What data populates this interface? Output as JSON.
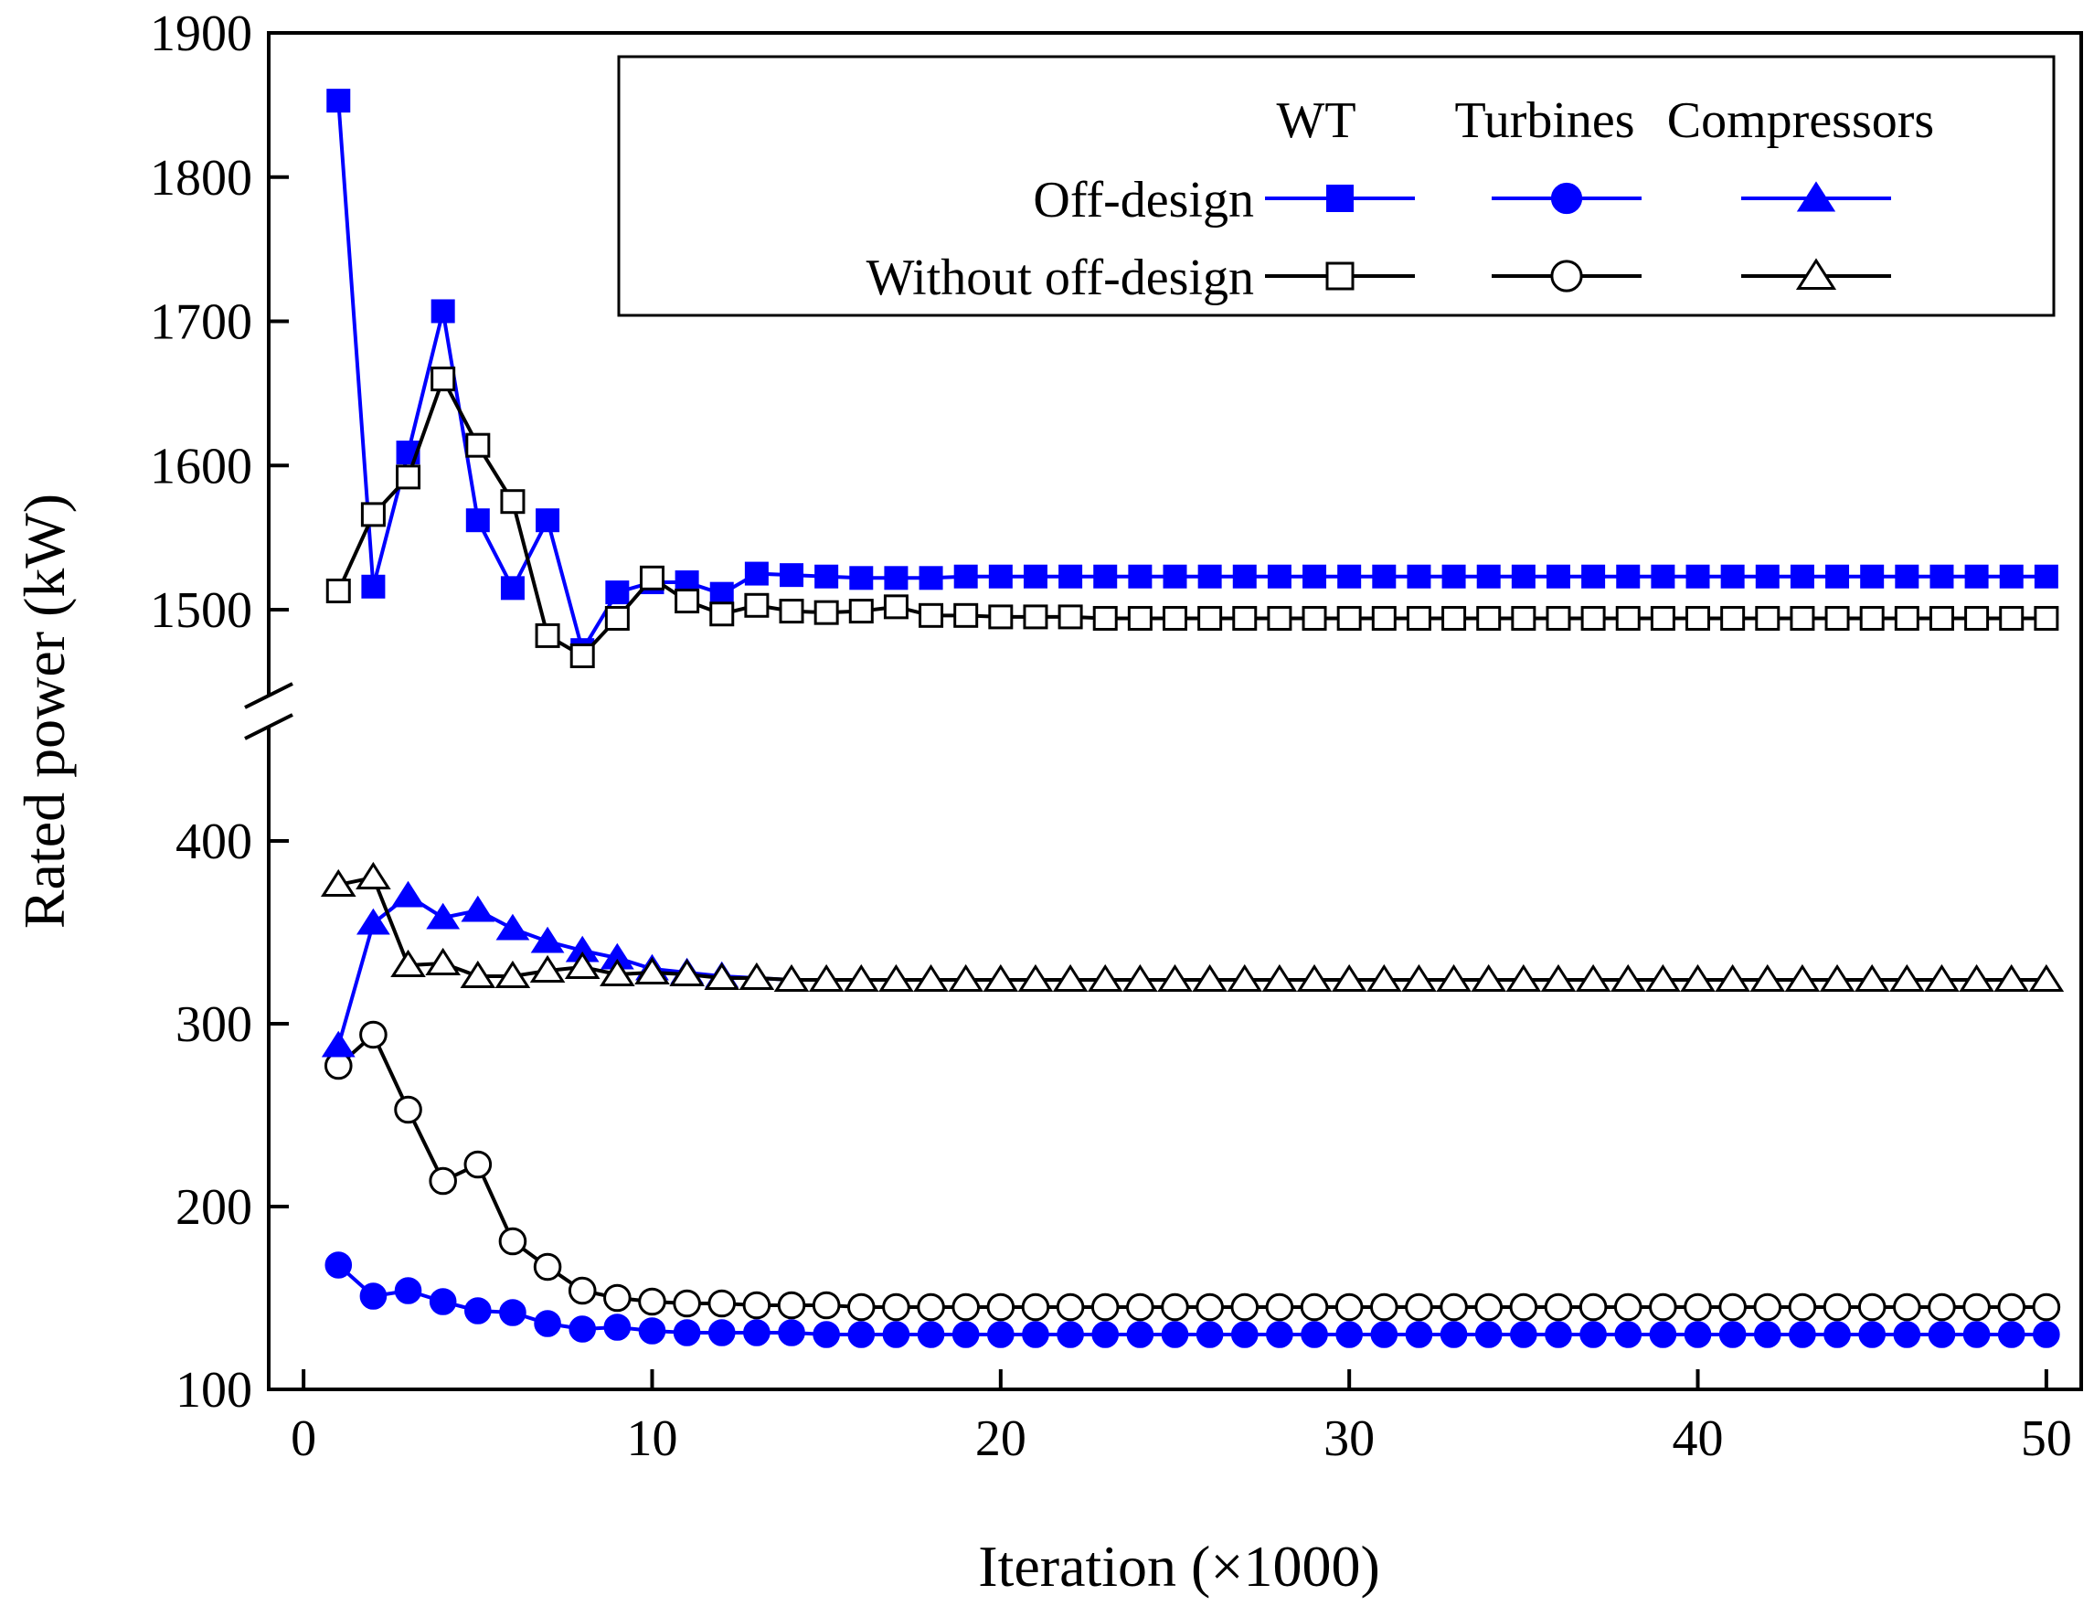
{
  "chart_data": {
    "type": "line",
    "xlabel": "Iteration (×1000)",
    "ylabel": "Rated power (kW)",
    "xlim": [
      -1,
      51
    ],
    "x_ticks": [
      0,
      10,
      20,
      30,
      40,
      50
    ],
    "y_axis_break": true,
    "y_segments": [
      {
        "name": "upper",
        "ylim": [
          1455,
          1900
        ],
        "ticks": [
          1500,
          1600,
          1700,
          1800,
          1900
        ]
      },
      {
        "name": "lower",
        "ylim": [
          100,
          440
        ],
        "ticks": [
          100,
          200,
          300,
          400
        ]
      }
    ],
    "x": [
      1,
      2,
      3,
      4,
      5,
      6,
      7,
      8,
      9,
      10,
      11,
      12,
      13,
      14,
      15,
      16,
      17,
      18,
      19,
      20,
      21,
      22,
      23,
      24,
      25,
      26,
      27,
      28,
      29,
      30,
      31,
      32,
      33,
      34,
      35,
      36,
      37,
      38,
      39,
      40,
      41,
      42,
      43,
      44,
      45,
      46,
      47,
      48,
      49,
      50
    ],
    "legend": {
      "column_headers": [
        "WT",
        "Turbines",
        "Compressors"
      ],
      "row_labels": [
        "Off-design",
        "Without off-design"
      ],
      "placement": "top-right"
    },
    "series": [
      {
        "name": "WT Off-design",
        "segment": "upper",
        "color": "#0000ff",
        "marker": "square",
        "filled": true,
        "values": [
          1853,
          1516,
          1609,
          1707,
          1562,
          1515,
          1562,
          1472,
          1512,
          1519,
          1519,
          1511,
          1525,
          1524,
          1523,
          1522,
          1522,
          1522,
          1523,
          1523,
          1523,
          1523,
          1523,
          1523,
          1523,
          1523,
          1523,
          1523,
          1523,
          1523,
          1523,
          1523,
          1523,
          1523,
          1523,
          1523,
          1523,
          1523,
          1523,
          1523,
          1523,
          1523,
          1523,
          1523,
          1523,
          1523,
          1523,
          1523,
          1523,
          1523
        ]
      },
      {
        "name": "WT Without off-design",
        "segment": "upper",
        "color": "#000000",
        "marker": "square",
        "filled": false,
        "values": [
          1513,
          1566,
          1592,
          1660,
          1614,
          1575,
          1482,
          1468,
          1494,
          1522,
          1506,
          1497,
          1503,
          1499,
          1498,
          1499,
          1502,
          1496,
          1496,
          1495,
          1495,
          1495,
          1494,
          1494,
          1494,
          1494,
          1494,
          1494,
          1494,
          1494,
          1494,
          1494,
          1494,
          1494,
          1494,
          1494,
          1494,
          1494,
          1494,
          1494,
          1494,
          1494,
          1494,
          1494,
          1494,
          1494,
          1494,
          1494,
          1494,
          1494
        ]
      },
      {
        "name": "Turbines Off-design",
        "segment": "lower",
        "color": "#0000ff",
        "marker": "circle",
        "filled": true,
        "values": [
          168,
          151,
          154,
          148,
          143,
          142,
          136,
          133,
          134,
          132,
          131,
          131,
          131,
          131,
          130,
          130,
          130,
          130,
          130,
          130,
          130,
          130,
          130,
          130,
          130,
          130,
          130,
          130,
          130,
          130,
          130,
          130,
          130,
          130,
          130,
          130,
          130,
          130,
          130,
          130,
          130,
          130,
          130,
          130,
          130,
          130,
          130,
          130,
          130,
          130
        ]
      },
      {
        "name": "Turbines Without off-design",
        "segment": "lower",
        "color": "#000000",
        "marker": "circle",
        "filled": false,
        "values": [
          277,
          294,
          253,
          214,
          223,
          181,
          167,
          154,
          150,
          148,
          147,
          147,
          146,
          146,
          146,
          145,
          145,
          145,
          145,
          145,
          145,
          145,
          145,
          145,
          145,
          145,
          145,
          145,
          145,
          145,
          145,
          145,
          145,
          145,
          145,
          145,
          145,
          145,
          145,
          145,
          145,
          145,
          145,
          145,
          145,
          145,
          145,
          145,
          145,
          145
        ]
      },
      {
        "name": "Compressors Off-design",
        "segment": "lower",
        "color": "#0000ff",
        "marker": "triangle",
        "filled": true,
        "values": [
          288,
          355,
          370,
          358,
          362,
          352,
          345,
          340,
          336,
          330,
          328,
          326,
          325,
          324,
          324,
          324,
          324,
          324,
          324,
          324,
          324,
          324,
          324,
          324,
          324,
          324,
          324,
          324,
          324,
          324,
          324,
          324,
          324,
          324,
          324,
          324,
          324,
          324,
          324,
          324,
          324,
          324,
          324,
          324,
          324,
          324,
          324,
          324,
          324,
          324
        ]
      },
      {
        "name": "Compressors Without off-design",
        "segment": "lower",
        "color": "#000000",
        "marker": "triangle",
        "filled": false,
        "values": [
          376,
          380,
          332,
          333,
          326,
          326,
          329,
          331,
          327,
          328,
          327,
          325,
          325,
          324,
          324,
          324,
          324,
          324,
          324,
          324,
          324,
          324,
          324,
          324,
          324,
          324,
          324,
          324,
          324,
          324,
          324,
          324,
          324,
          324,
          324,
          324,
          324,
          324,
          324,
          324,
          324,
          324,
          324,
          324,
          324,
          324,
          324,
          324,
          324,
          324
        ]
      }
    ]
  }
}
